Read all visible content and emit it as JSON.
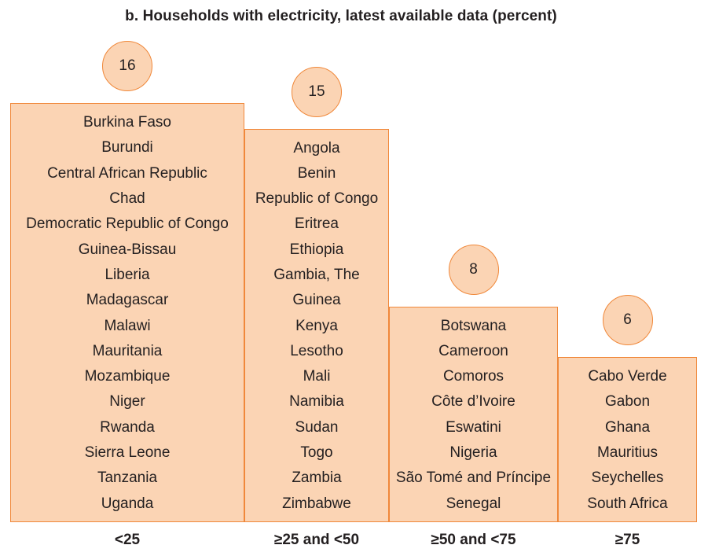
{
  "chart_data": {
    "type": "bar",
    "title": "b. Households with electricity, latest available data (percent)",
    "categories": [
      "<25",
      "≥25 and <50",
      "≥50 and <75",
      "≥75"
    ],
    "values": [
      16,
      15,
      8,
      6
    ],
    "fill_color": "#fbd4b4",
    "border_color": "#f0883a",
    "countries": [
      [
        "Burkina Faso",
        "Burundi",
        "Central African Republic",
        "Chad",
        "Democratic Republic of Congo",
        "Guinea-Bissau",
        "Liberia",
        "Madagascar",
        "Malawi",
        "Mauritania",
        "Mozambique",
        "Niger",
        "Rwanda",
        "Sierra Leone",
        "Tanzania",
        "Uganda"
      ],
      [
        "Angola",
        "Benin",
        "Republic of Congo",
        "Eritrea",
        "Ethiopia",
        "Gambia, The",
        "Guinea",
        "Kenya",
        "Lesotho",
        "Mali",
        "Namibia",
        "Sudan",
        "Togo",
        "Zambia",
        "Zimbabwe"
      ],
      [
        "Botswana",
        "Cameroon",
        "Comoros",
        "Côte d’Ivoire",
        "Eswatini",
        "Nigeria",
        "São Tomé and Príncipe",
        "Senegal"
      ],
      [
        "Cabo Verde",
        "Gabon",
        "Ghana",
        "Mauritius",
        "Seychelles",
        "South Africa"
      ]
    ]
  }
}
